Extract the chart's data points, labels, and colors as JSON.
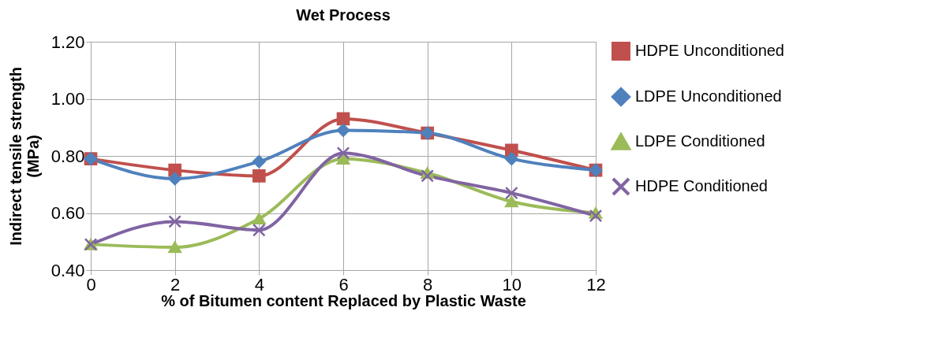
{
  "chart_data": {
    "type": "line",
    "title": "Wet Process",
    "xlabel": "% of Bitumen content Replaced by Plastic Waste",
    "ylabel": "Indirect tensile strength (MPa)",
    "x": [
      0,
      2,
      4,
      6,
      8,
      10,
      12
    ],
    "xlim": [
      0,
      12
    ],
    "xticks": [
      0,
      2,
      4,
      6,
      8,
      10,
      12
    ],
    "ylim": [
      0.4,
      1.2
    ],
    "yticks": [
      {
        "value": 0.4,
        "label": "0.40"
      },
      {
        "value": 0.6,
        "label": "0.60"
      },
      {
        "value": 0.8,
        "label": "0.80"
      },
      {
        "value": 1.0,
        "label": "1.00"
      },
      {
        "value": 1.2,
        "label": "1.20"
      }
    ],
    "grid": true,
    "legend": "right",
    "series": [
      {
        "name": "HDPE Unconditioned",
        "color": "#c0504d",
        "marker": "square",
        "values": [
          0.79,
          0.75,
          0.73,
          0.93,
          0.88,
          0.82,
          0.75
        ]
      },
      {
        "name": "LDPE Unconditioned",
        "color": "#4f81bd",
        "marker": "diamond",
        "values": [
          0.79,
          0.72,
          0.78,
          0.89,
          0.88,
          0.79,
          0.75
        ]
      },
      {
        "name": "LDPE Conditioned",
        "color": "#9bbb59",
        "marker": "triangle",
        "values": [
          0.49,
          0.48,
          0.58,
          0.79,
          0.74,
          0.64,
          0.6
        ]
      },
      {
        "name": "HDPE Conditioned",
        "color": "#8064a2",
        "marker": "cross",
        "values": [
          0.49,
          0.57,
          0.54,
          0.81,
          0.73,
          0.67,
          0.59
        ]
      }
    ]
  }
}
